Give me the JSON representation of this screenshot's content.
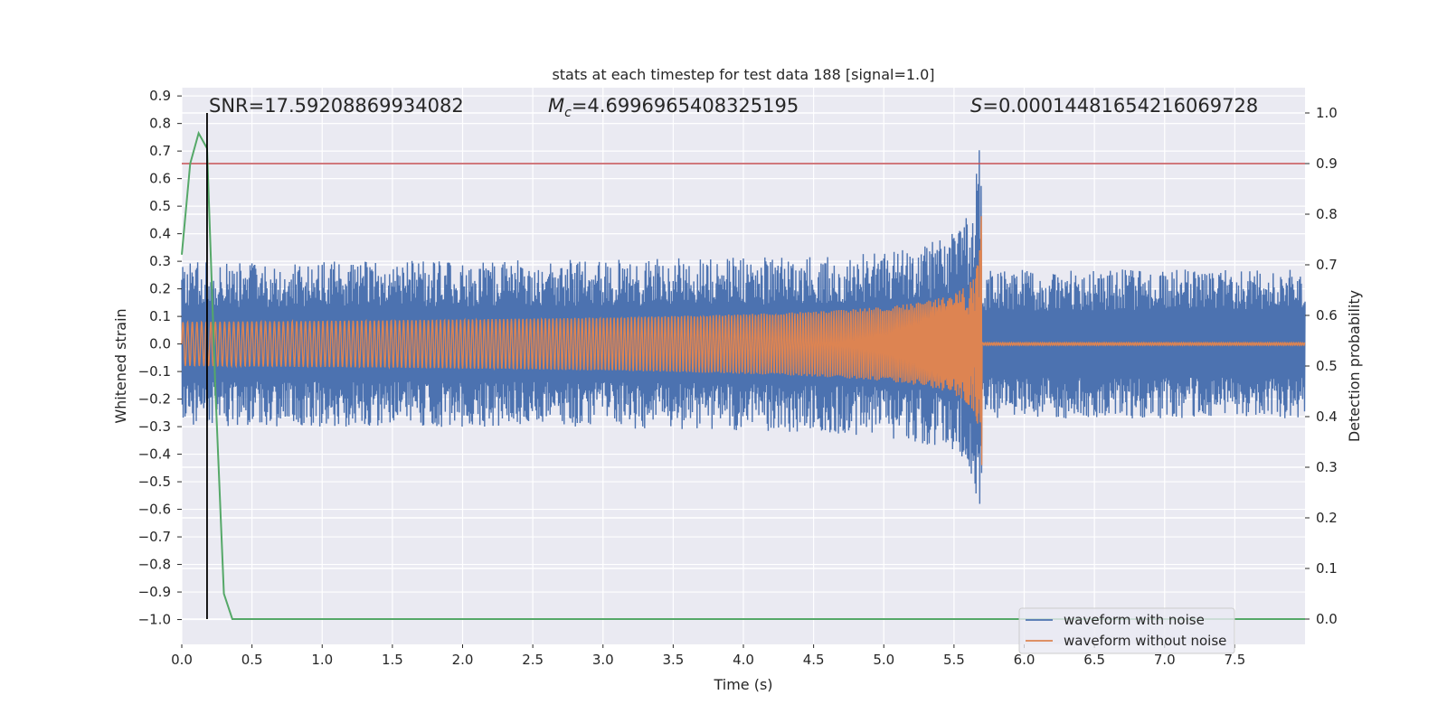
{
  "chart_data": {
    "type": "line",
    "title": "stats at each timestep for test data 188 [signal=1.0]",
    "xlabel": "Time (s)",
    "ylabel": "Whitened strain",
    "y2label": "Detection probability",
    "xlim": [
      0.0,
      8.0
    ],
    "ylim": [
      -1.09,
      0.93
    ],
    "y2lim": [
      -0.05,
      1.05
    ],
    "xticks": [
      "0.0",
      "0.5",
      "1.0",
      "1.5",
      "2.0",
      "2.5",
      "3.0",
      "3.5",
      "4.0",
      "4.5",
      "5.0",
      "5.5",
      "6.0",
      "6.5",
      "7.0",
      "7.5"
    ],
    "xtick_values": [
      0.0,
      0.5,
      1.0,
      1.5,
      2.0,
      2.5,
      3.0,
      3.5,
      4.0,
      4.5,
      5.0,
      5.5,
      6.0,
      6.5,
      7.0,
      7.5
    ],
    "yticks": [
      "0.9",
      "0.8",
      "0.7",
      "0.6",
      "0.5",
      "0.4",
      "0.3",
      "0.2",
      "0.1",
      "0.0",
      "−0.1",
      "−0.2",
      "−0.3",
      "−0.4",
      "−0.5",
      "−0.6",
      "−0.7",
      "−0.8",
      "−0.9",
      "−1.0"
    ],
    "ytick_values": [
      0.9,
      0.8,
      0.7,
      0.6,
      0.5,
      0.4,
      0.3,
      0.2,
      0.1,
      0.0,
      -0.1,
      -0.2,
      -0.3,
      -0.4,
      -0.5,
      -0.6,
      -0.7,
      -0.8,
      -0.9,
      -1.0
    ],
    "y2ticks": [
      "1.0",
      "0.9",
      "0.8",
      "0.7",
      "0.6",
      "0.5",
      "0.4",
      "0.3",
      "0.2",
      "0.1",
      "0.0"
    ],
    "y2tick_values": [
      1.0,
      0.9,
      0.8,
      0.7,
      0.6,
      0.5,
      0.4,
      0.3,
      0.2,
      0.1,
      0.0
    ],
    "annotations": {
      "snr": "SNR=17.59208869934082",
      "mc_symbol": "M",
      "mc_sub": "c",
      "mc_value": "=4.6996965408325195",
      "s_symbol": "S",
      "s_value": "=0.00014481654216069728"
    },
    "merger_time": 5.7,
    "detection_marker_time": 0.18,
    "threshold": 0.9,
    "noise_envelope": {
      "base_amplitude": 0.28,
      "peak_amplitude": 0.85,
      "post_merger_amplitude": 0.27
    },
    "signal_envelope": {
      "start_amplitude": 0.08,
      "peak_amplitude": 0.72,
      "post_merger_amplitude": 0.005
    },
    "series": [
      {
        "name": "waveform with noise",
        "color": "#4c72b0"
      },
      {
        "name": "waveform without noise",
        "color": "#dd8452"
      },
      {
        "color": "#55a868",
        "axis": "right",
        "x": [
          0.0,
          0.06,
          0.12,
          0.18,
          0.24,
          0.3,
          0.36,
          0.42,
          8.0
        ],
        "y": [
          0.72,
          0.9,
          0.96,
          0.93,
          0.45,
          0.05,
          0.0,
          0.0,
          0.0
        ]
      }
    ],
    "threshold_color": "#c44e52",
    "marker_color": "#000000",
    "legend_position": "lower-right",
    "grid": true
  }
}
